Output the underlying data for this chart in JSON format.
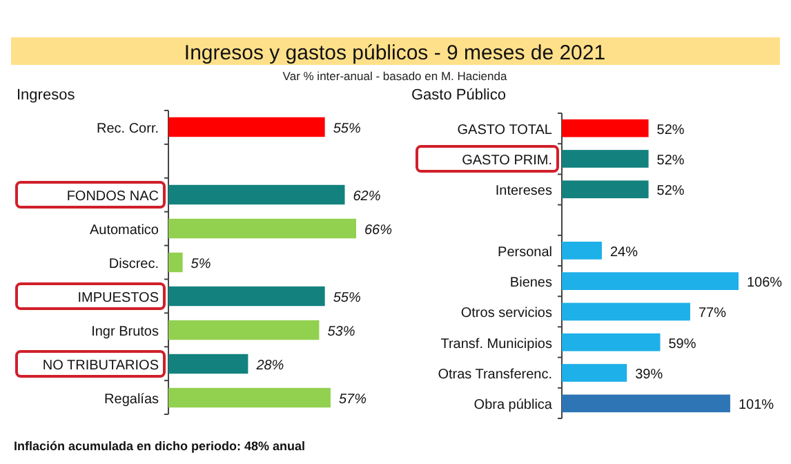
{
  "chart_data": [
    {
      "type": "other",
      "title": "Ingresos y gastos públicos - 9 meses de 2021",
      "subtitle": "Var % inter-anual - basado en M. Hacienda",
      "annotations": [
        "Inflación acumulada en dicho periodo: 48% anual"
      ]
    },
    {
      "type": "bar",
      "orientation": "horizontal",
      "title": "Ingresos",
      "categories": [
        "Rec. Corr.",
        null,
        "FONDOS NAC",
        "Automatico",
        "Discrec.",
        "IMPUESTOS",
        "Ingr Brutos",
        "NO TRIBUTARIOS",
        "Regalías"
      ],
      "values": [
        55,
        null,
        62,
        66,
        5,
        55,
        53,
        28,
        57
      ],
      "colors": [
        "#ff0000",
        null,
        "#13827e",
        "#92d050",
        "#92d050",
        "#13827e",
        "#92d050",
        "#13827e",
        "#92d050"
      ],
      "value_labels": [
        "55%",
        null,
        "62%",
        "66%",
        "5%",
        "55%",
        "53%",
        "28%",
        "57%"
      ]
    },
    {
      "type": "bar",
      "orientation": "horizontal",
      "title": "Gasto Público",
      "categories": [
        "GASTO TOTAL",
        "GASTO PRIM.",
        "Intereses",
        null,
        "Personal",
        "Bienes",
        "Otros servicios",
        "Transf. Municipios",
        "Otras Transferenc.",
        "Obra pública"
      ],
      "values": [
        52,
        52,
        52,
        null,
        24,
        106,
        77,
        59,
        39,
        101
      ],
      "colors": [
        "#ff0000",
        "#13827e",
        "#13827e",
        null,
        "#1eb0e8",
        "#1eb0e8",
        "#1eb0e8",
        "#1eb0e8",
        "#1eb0e8",
        "#2e75b6"
      ],
      "value_labels": [
        "52%",
        "52%",
        "52%",
        null,
        "24%",
        "106%",
        "77%",
        "59%",
        "39%",
        "101%"
      ]
    }
  ]
}
